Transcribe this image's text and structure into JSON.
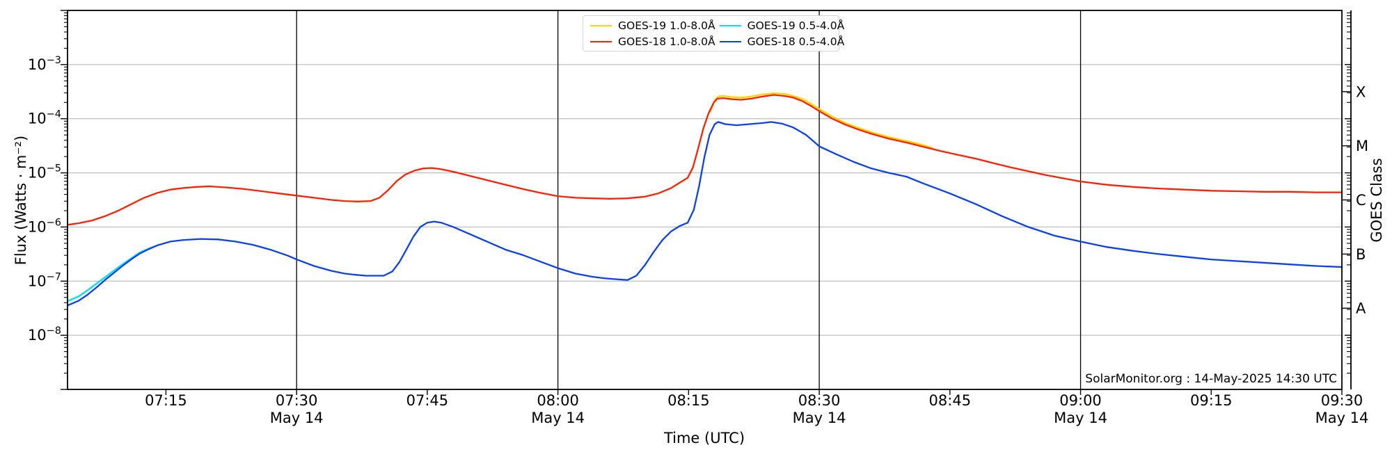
{
  "chart_data": {
    "type": "line",
    "title": "",
    "xlabel": "Time (UTC)",
    "ylabel": "Flux (Watts · m⁻²)",
    "ylabel_right": "GOES Class",
    "annotation": "SolarMonitor.org : 14-May-2025 14:30 UTC",
    "x_axis": {
      "units": "minutes after 07:00 UTC",
      "range_t_min": [
        3.7,
        150
      ],
      "date": "May 14",
      "ticks": [
        {
          "t": 15,
          "label": "07:15",
          "sublabel": ""
        },
        {
          "t": 30,
          "label": "07:30",
          "sublabel": "May 14"
        },
        {
          "t": 45,
          "label": "07:45",
          "sublabel": ""
        },
        {
          "t": 60,
          "label": "08:00",
          "sublabel": "May 14"
        },
        {
          "t": 75,
          "label": "08:15",
          "sublabel": ""
        },
        {
          "t": 90,
          "label": "08:30",
          "sublabel": "May 14"
        },
        {
          "t": 105,
          "label": "08:45",
          "sublabel": ""
        },
        {
          "t": 120,
          "label": "09:00",
          "sublabel": "May 14"
        },
        {
          "t": 135,
          "label": "09:15",
          "sublabel": ""
        },
        {
          "t": 150,
          "label": "09:30",
          "sublabel": "May 14"
        }
      ],
      "vlines_t": [
        30,
        60,
        90,
        120
      ],
      "vlines_labels": [
        "07:30",
        "08:00",
        "08:30",
        "09:00"
      ]
    },
    "y_axis": {
      "scale": "log10",
      "units": "Watts m^-2",
      "log_range": [
        -9,
        -2
      ],
      "tick_exponents": [
        -3,
        -4,
        -5,
        -6,
        -7,
        -8
      ],
      "grid": true
    },
    "goes_classes": [
      {
        "label": "X",
        "log_flux": -3.5
      },
      {
        "label": "M",
        "log_flux": -4.5
      },
      {
        "label": "C",
        "log_flux": -5.5
      },
      {
        "label": "B",
        "log_flux": -6.5
      },
      {
        "label": "A",
        "log_flux": -7.5
      }
    ],
    "style": {
      "gridline_color": "#b0b0b0",
      "axis_color": "#000000",
      "background": "#ffffff"
    },
    "series": [
      {
        "name": "GOES-19 1.0-8.0Å",
        "color": "#ffd300",
        "points_t_logflux": [
          [
            77.5,
            -3.87
          ],
          [
            78,
            -3.66
          ],
          [
            78.4,
            -3.59
          ],
          [
            79,
            -3.58
          ],
          [
            80,
            -3.6
          ],
          [
            81,
            -3.61
          ],
          [
            82.2,
            -3.59
          ],
          [
            83.5,
            -3.55
          ],
          [
            84.8,
            -3.53
          ],
          [
            86,
            -3.54
          ],
          [
            87,
            -3.58
          ],
          [
            88,
            -3.63
          ],
          [
            89,
            -3.72
          ],
          [
            90,
            -3.82
          ],
          [
            91.5,
            -3.96
          ],
          [
            93,
            -4.08
          ],
          [
            94.5,
            -4.17
          ],
          [
            96,
            -4.25
          ],
          [
            98,
            -4.34
          ],
          [
            100,
            -4.41
          ],
          [
            102,
            -4.49
          ],
          [
            103,
            -4.54
          ]
        ]
      },
      {
        "name": "GOES-18 1.0-8.0Å",
        "color": "#ff2000",
        "points_t_logflux": [
          [
            3.7,
            -5.96
          ],
          [
            5,
            -5.93
          ],
          [
            6.5,
            -5.88
          ],
          [
            8,
            -5.8
          ],
          [
            9.5,
            -5.7
          ],
          [
            11,
            -5.58
          ],
          [
            12.5,
            -5.46
          ],
          [
            14,
            -5.37
          ],
          [
            15.5,
            -5.31
          ],
          [
            17,
            -5.28
          ],
          [
            18.5,
            -5.26
          ],
          [
            20,
            -5.25
          ],
          [
            22,
            -5.27
          ],
          [
            24,
            -5.3
          ],
          [
            26,
            -5.34
          ],
          [
            28,
            -5.38
          ],
          [
            30,
            -5.42
          ],
          [
            32,
            -5.46
          ],
          [
            34,
            -5.5
          ],
          [
            35.5,
            -5.52
          ],
          [
            37,
            -5.53
          ],
          [
            38.5,
            -5.52
          ],
          [
            39.5,
            -5.46
          ],
          [
            40.5,
            -5.32
          ],
          [
            41.5,
            -5.15
          ],
          [
            42.5,
            -5.03
          ],
          [
            43.5,
            -4.96
          ],
          [
            44.5,
            -4.92
          ],
          [
            45.5,
            -4.91
          ],
          [
            46.5,
            -4.93
          ],
          [
            48,
            -4.98
          ],
          [
            50,
            -5.06
          ],
          [
            52,
            -5.14
          ],
          [
            54,
            -5.22
          ],
          [
            56,
            -5.3
          ],
          [
            58,
            -5.37
          ],
          [
            60,
            -5.43
          ],
          [
            62,
            -5.46
          ],
          [
            64,
            -5.47
          ],
          [
            66,
            -5.48
          ],
          [
            68,
            -5.47
          ],
          [
            70,
            -5.44
          ],
          [
            71.5,
            -5.38
          ],
          [
            73,
            -5.28
          ],
          [
            74,
            -5.18
          ],
          [
            74.9,
            -5.09
          ],
          [
            75.5,
            -4.9
          ],
          [
            76.1,
            -4.55
          ],
          [
            76.7,
            -4.18
          ],
          [
            77.3,
            -3.9
          ],
          [
            77.9,
            -3.7
          ],
          [
            78.3,
            -3.63
          ],
          [
            79,
            -3.62
          ],
          [
            80,
            -3.64
          ],
          [
            81,
            -3.65
          ],
          [
            82.2,
            -3.63
          ],
          [
            83.5,
            -3.59
          ],
          [
            84.8,
            -3.56
          ],
          [
            86,
            -3.58
          ],
          [
            87,
            -3.61
          ],
          [
            88,
            -3.67
          ],
          [
            89,
            -3.76
          ],
          [
            90,
            -3.86
          ],
          [
            91.5,
            -4
          ],
          [
            93,
            -4.11
          ],
          [
            94.5,
            -4.2
          ],
          [
            96,
            -4.28
          ],
          [
            98,
            -4.37
          ],
          [
            100,
            -4.44
          ],
          [
            102,
            -4.52
          ],
          [
            104,
            -4.6
          ],
          [
            106,
            -4.67
          ],
          [
            108,
            -4.74
          ],
          [
            110,
            -4.82
          ],
          [
            112,
            -4.9
          ],
          [
            114,
            -4.97
          ],
          [
            116,
            -5.04
          ],
          [
            118,
            -5.1
          ],
          [
            120,
            -5.16
          ],
          [
            123,
            -5.22
          ],
          [
            126,
            -5.26
          ],
          [
            129,
            -5.29
          ],
          [
            132,
            -5.31
          ],
          [
            135,
            -5.33
          ],
          [
            138,
            -5.34
          ],
          [
            141,
            -5.35
          ],
          [
            144,
            -5.35
          ],
          [
            147,
            -5.36
          ],
          [
            150,
            -5.36
          ]
        ]
      },
      {
        "name": "GOES-19 0.5-4.0Å",
        "color": "#00e0f0",
        "points_t_logflux": [
          [
            3.7,
            -7.37
          ],
          [
            5,
            -7.28
          ],
          [
            6,
            -7.17
          ],
          [
            7,
            -7.05
          ],
          [
            8,
            -6.93
          ],
          [
            9,
            -6.81
          ],
          [
            10,
            -6.69
          ],
          [
            11,
            -6.58
          ],
          [
            12,
            -6.47
          ],
          [
            13,
            -6.4
          ],
          [
            14,
            -6.34
          ]
        ]
      },
      {
        "name": "GOES-18 0.5-4.0Å",
        "color": "#0a40f0",
        "points_t_logflux": [
          [
            3.7,
            -7.45
          ],
          [
            5,
            -7.36
          ],
          [
            6,
            -7.25
          ],
          [
            7,
            -7.12
          ],
          [
            8,
            -6.98
          ],
          [
            9,
            -6.85
          ],
          [
            10,
            -6.72
          ],
          [
            11,
            -6.6
          ],
          [
            12,
            -6.49
          ],
          [
            13,
            -6.41
          ],
          [
            14,
            -6.34
          ],
          [
            15.5,
            -6.27
          ],
          [
            17,
            -6.24
          ],
          [
            19,
            -6.22
          ],
          [
            21,
            -6.23
          ],
          [
            23,
            -6.27
          ],
          [
            25,
            -6.33
          ],
          [
            27,
            -6.42
          ],
          [
            29,
            -6.53
          ],
          [
            30,
            -6.6
          ],
          [
            32,
            -6.72
          ],
          [
            34,
            -6.81
          ],
          [
            35.5,
            -6.86
          ],
          [
            36.5,
            -6.88
          ],
          [
            38,
            -6.9
          ],
          [
            40,
            -6.9
          ],
          [
            41,
            -6.82
          ],
          [
            41.8,
            -6.65
          ],
          [
            42.6,
            -6.42
          ],
          [
            43.4,
            -6.18
          ],
          [
            44.2,
            -6
          ],
          [
            45,
            -5.92
          ],
          [
            45.8,
            -5.9
          ],
          [
            46.6,
            -5.92
          ],
          [
            48,
            -6
          ],
          [
            50,
            -6.14
          ],
          [
            52,
            -6.28
          ],
          [
            54,
            -6.42
          ],
          [
            56,
            -6.52
          ],
          [
            58,
            -6.64
          ],
          [
            60,
            -6.76
          ],
          [
            62,
            -6.86
          ],
          [
            64,
            -6.92
          ],
          [
            65.5,
            -6.95
          ],
          [
            67,
            -6.97
          ],
          [
            68,
            -6.98
          ],
          [
            69,
            -6.9
          ],
          [
            70,
            -6.7
          ],
          [
            71,
            -6.46
          ],
          [
            72,
            -6.24
          ],
          [
            73,
            -6.08
          ],
          [
            74,
            -5.98
          ],
          [
            74.9,
            -5.92
          ],
          [
            75.6,
            -5.68
          ],
          [
            76.2,
            -5.25
          ],
          [
            76.8,
            -4.72
          ],
          [
            77.4,
            -4.3
          ],
          [
            78,
            -4.1
          ],
          [
            78.4,
            -4.06
          ],
          [
            79.2,
            -4.1
          ],
          [
            80.5,
            -4.12
          ],
          [
            82,
            -4.1
          ],
          [
            83.5,
            -4.08
          ],
          [
            84.5,
            -4.06
          ],
          [
            85.7,
            -4.09
          ],
          [
            87,
            -4.16
          ],
          [
            88.5,
            -4.3
          ],
          [
            90,
            -4.51
          ],
          [
            92,
            -4.66
          ],
          [
            94,
            -4.8
          ],
          [
            96,
            -4.92
          ],
          [
            98,
            -5
          ],
          [
            100,
            -5.07
          ],
          [
            102,
            -5.2
          ],
          [
            105,
            -5.38
          ],
          [
            108,
            -5.58
          ],
          [
            111,
            -5.8
          ],
          [
            114,
            -6
          ],
          [
            117,
            -6.16
          ],
          [
            120,
            -6.27
          ],
          [
            123,
            -6.37
          ],
          [
            126,
            -6.44
          ],
          [
            129,
            -6.5
          ],
          [
            132,
            -6.55
          ],
          [
            135,
            -6.6
          ],
          [
            138,
            -6.63
          ],
          [
            141,
            -6.66
          ],
          [
            144,
            -6.69
          ],
          [
            147,
            -6.72
          ],
          [
            150,
            -6.74
          ]
        ]
      }
    ]
  },
  "legend": {
    "items": [
      {
        "label": "GOES-19 1.0-8.0Å",
        "color": "#ffd300"
      },
      {
        "label": "GOES-18 1.0-8.0Å",
        "color": "#ff2000"
      },
      {
        "label": "GOES-19 0.5-4.0Å",
        "color": "#00e0f0"
      },
      {
        "label": "GOES-18 0.5-4.0Å",
        "color": "#0a40f0"
      }
    ]
  }
}
